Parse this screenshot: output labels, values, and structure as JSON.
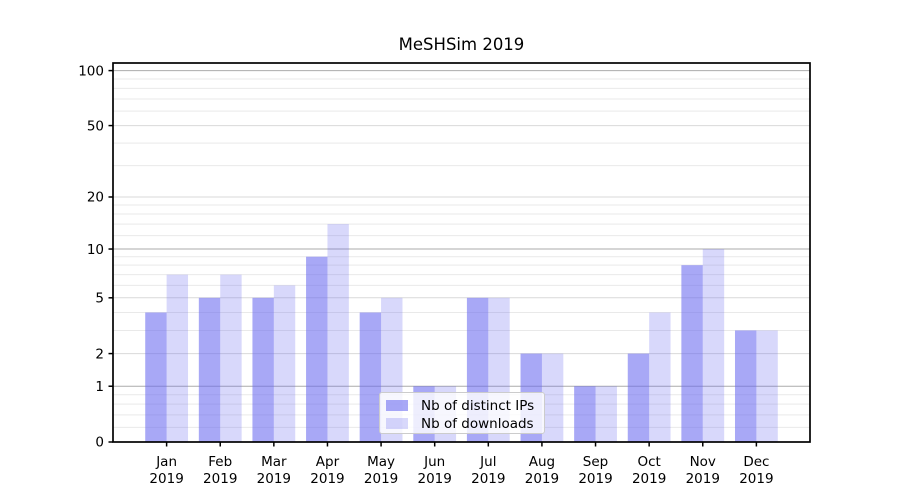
{
  "title": "MeSHSim 2019",
  "chart_data": {
    "type": "bar",
    "title": "MeSHSim 2019",
    "categories": [
      "Jan 2019",
      "Feb 2019",
      "Mar 2019",
      "Apr 2019",
      "May 2019",
      "Jun 2019",
      "Jul 2019",
      "Aug 2019",
      "Sep 2019",
      "Oct 2019",
      "Nov 2019",
      "Dec 2019"
    ],
    "series": [
      {
        "name": "Nb of distinct IPs",
        "color": "rgba(105,105,240,0.58)",
        "values": [
          4,
          5,
          5,
          9,
          4,
          1,
          5,
          2,
          1,
          2,
          8,
          3
        ]
      },
      {
        "name": "Nb of downloads",
        "color": "rgba(105,105,240,0.26)",
        "values": [
          7,
          7,
          6,
          14,
          5,
          1,
          5,
          2,
          1,
          4,
          10,
          3
        ]
      }
    ],
    "yscale": "log1p",
    "ylim": [
      0,
      110
    ],
    "y_ticks_labeled": [
      0,
      1,
      2,
      5,
      10,
      20,
      50,
      100
    ],
    "y_grid_major": [
      1,
      10,
      100
    ],
    "y_grid_mid": [
      2,
      5,
      20,
      50
    ],
    "y_grid_minor": [
      0.2,
      0.4,
      0.6,
      0.8,
      3,
      4,
      6,
      7,
      8,
      9,
      12,
      14,
      16,
      18,
      30,
      40,
      60,
      70,
      80,
      90
    ],
    "grid": true,
    "legend_position": "lower center",
    "xlabel": "",
    "ylabel": ""
  },
  "colors": {
    "grid_major": "#ababab",
    "grid_mid": "#d9d9d9",
    "grid_minor": "#e9e9e9",
    "spine": "#000000",
    "tick": "#000000",
    "text": "#000000",
    "legend_border": "#cccccc",
    "legend_bg": "rgba(255,255,255,0.8)"
  }
}
